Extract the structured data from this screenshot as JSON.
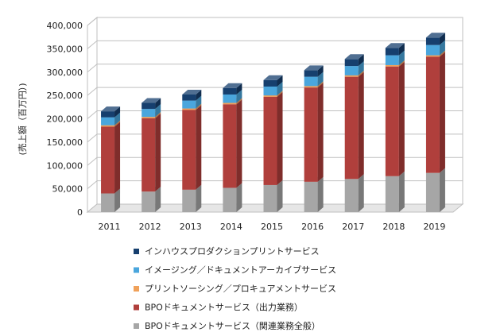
{
  "chart_data": {
    "type": "bar",
    "stacked": true,
    "style": "3d",
    "ylabel": "(売上額（百万円）)",
    "ylim": [
      0,
      400000
    ],
    "yticks": [
      "0",
      "50,000",
      "100,000",
      "150,000",
      "200,000",
      "250,000",
      "300,000",
      "350,000",
      "400,000"
    ],
    "grid": true,
    "legend_position": "bottom",
    "categories": [
      "2011",
      "2012",
      "2013",
      "2014",
      "2015",
      "2016",
      "2017",
      "2018",
      "2019"
    ],
    "series": [
      {
        "name": "BPOドキュメントサービス（関連業務全般）",
        "color": "#a6a6a6",
        "values": [
          40000,
          44000,
          48000,
          52000,
          58000,
          65000,
          71000,
          77000,
          84000
        ]
      },
      {
        "name": "BPOドキュメントサービス（出力業務）",
        "color": "#b03f3c",
        "values": [
          143000,
          157000,
          171000,
          179000,
          189000,
          202000,
          219000,
          235000,
          249000
        ]
      },
      {
        "name": "プリントソーシング／プロキュアメントサービス",
        "color": "#f0a15a",
        "values": [
          3000,
          3000,
          3000,
          3000,
          3000,
          3000,
          3000,
          3000,
          3000
        ]
      },
      {
        "name": "イメージング／ドキュメントアーカイブサービス",
        "color": "#4aa6dd",
        "values": [
          17000,
          17000,
          17000,
          18000,
          19000,
          20000,
          20000,
          21000,
          22000
        ]
      },
      {
        "name": "インハウスプロダクションプリントサービス",
        "color": "#163f6e",
        "values": [
          13000,
          13000,
          13000,
          14000,
          14000,
          14000,
          15000,
          16000,
          16000
        ]
      }
    ]
  },
  "legend_order": [
    4,
    3,
    2,
    1,
    0
  ]
}
